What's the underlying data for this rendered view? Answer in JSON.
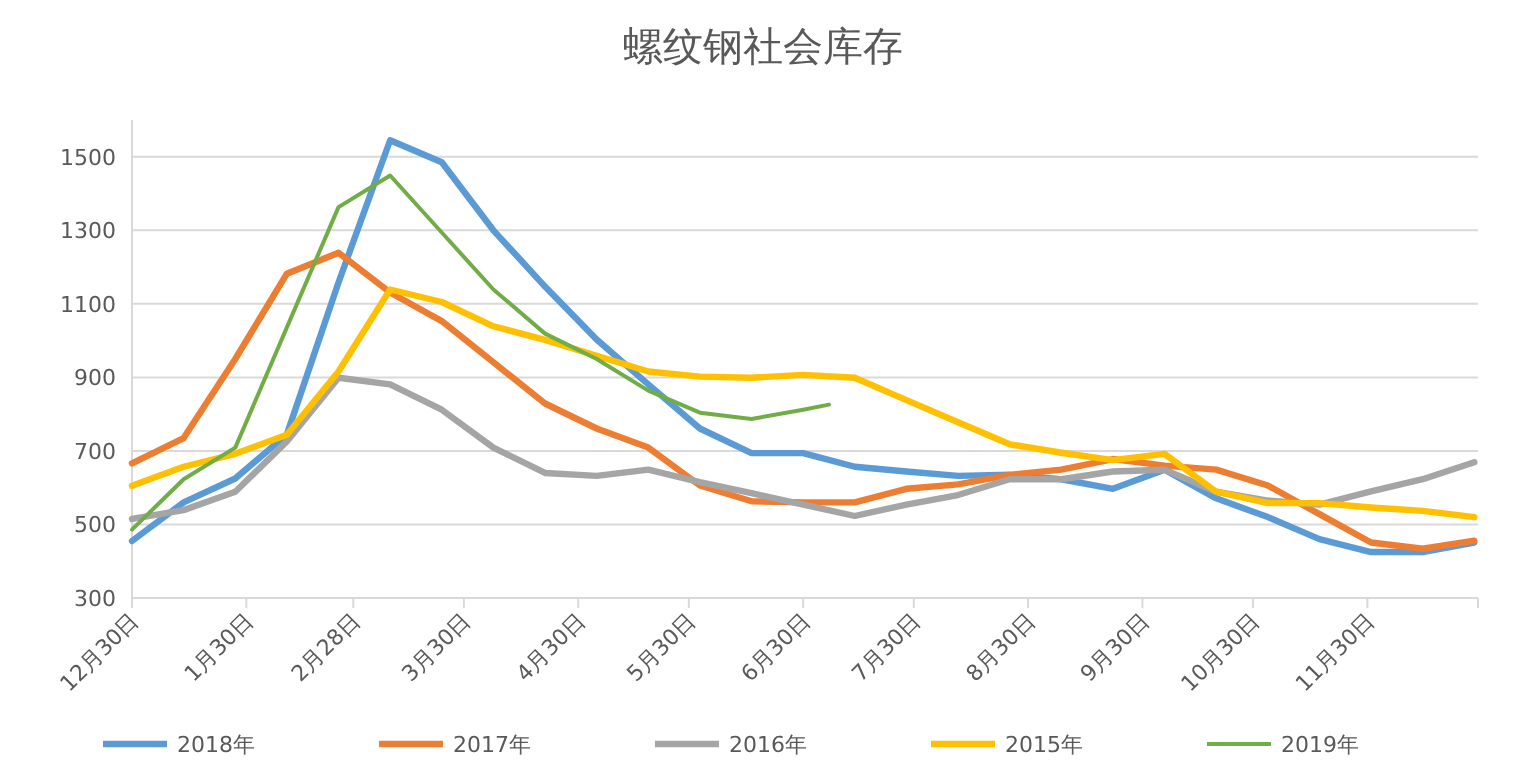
{
  "chart_data": {
    "type": "line",
    "title": "螺纹钢社会库存",
    "x": [
      "2017-12-30",
      "2018-01-13",
      "2018-01-27",
      "2018-02-10",
      "2018-02-24",
      "2018-03-10",
      "2018-03-24",
      "2018-04-07",
      "2018-04-21",
      "2018-05-05",
      "2018-05-19",
      "2018-06-02",
      "2018-06-16",
      "2018-06-30",
      "2018-07-14",
      "2018-07-28",
      "2018-08-11",
      "2018-08-25",
      "2018-09-08",
      "2018-09-22",
      "2018-10-06",
      "2018-10-20",
      "2018-11-03",
      "2018-11-17",
      "2018-12-01",
      "2018-12-15",
      "2018-12-29"
    ],
    "xlim": [
      "2017-12-30",
      "2018-12-30"
    ],
    "xticks": [
      {
        "value": "2017-12-30",
        "label": "12月30日"
      },
      {
        "value": "2018-01-30",
        "label": "1月30日"
      },
      {
        "value": "2018-02-28",
        "label": "2月28日"
      },
      {
        "value": "2018-03-30",
        "label": "3月30日"
      },
      {
        "value": "2018-04-30",
        "label": "4月30日"
      },
      {
        "value": "2018-05-30",
        "label": "5月30日"
      },
      {
        "value": "2018-06-30",
        "label": "6月30日"
      },
      {
        "value": "2018-07-30",
        "label": "7月30日"
      },
      {
        "value": "2018-08-30",
        "label": "8月30日"
      },
      {
        "value": "2018-09-30",
        "label": "9月30日"
      },
      {
        "value": "2018-10-30",
        "label": "10月30日"
      },
      {
        "value": "2018-11-30",
        "label": "11月30日"
      }
    ],
    "ylim": [
      300,
      1600
    ],
    "yticks": [
      300,
      500,
      700,
      900,
      1100,
      1300,
      1500
    ],
    "grid": "y",
    "legend": "bottom",
    "marker": "none",
    "series": [
      {
        "name": "2018年",
        "color": "#5b9bd5",
        "values": [
          455,
          560,
          625,
          745,
          1158,
          1545,
          1485,
          1300,
          1147,
          1003,
          881,
          761,
          694,
          694,
          657,
          644,
          632,
          635,
          623,
          597,
          649,
          571,
          520,
          460,
          425,
          425,
          451
        ]
      },
      {
        "name": "2017年",
        "color": "#ed7d31",
        "values": [
          666,
          735,
          950,
          1182,
          1239,
          1131,
          1053,
          941,
          829,
          761,
          709,
          606,
          563,
          560,
          560,
          597,
          609,
          635,
          649,
          678,
          660,
          649,
          606,
          528,
          451,
          434,
          456
        ]
      },
      {
        "name": "2016年",
        "color": "#a5a5a5",
        "values": [
          515,
          539,
          589,
          726,
          899,
          881,
          812,
          709,
          640,
          632,
          649,
          615,
          585,
          554,
          523,
          554,
          580,
          623,
          623,
          644,
          649,
          589,
          565,
          554,
          590,
          623,
          669
        ]
      },
      {
        "name": "2015年",
        "color": "#ffc000",
        "values": [
          605,
          657,
          692,
          744,
          916,
          1139,
          1105,
          1039,
          1002,
          959,
          916,
          902,
          899,
          907,
          899,
          838,
          778,
          718,
          695,
          675,
          692,
          589,
          558,
          558,
          546,
          537,
          520
        ]
      },
      {
        "name": "2019年",
        "color": "#70ad47",
        "x": [
          "2017-12-30",
          "2018-01-13",
          "2018-01-27",
          "2018-02-10",
          "2018-02-24",
          "2018-03-10",
          "2018-03-24",
          "2018-04-07",
          "2018-04-21",
          "2018-05-05",
          "2018-05-19",
          "2018-06-02",
          "2018-06-16",
          "2018-06-30",
          "2018-07-07"
        ],
        "values": [
          486,
          623,
          709,
          1036,
          1363,
          1449,
          1294,
          1139,
          1019,
          950,
          864,
          804,
          787,
          812,
          826
        ]
      }
    ]
  }
}
